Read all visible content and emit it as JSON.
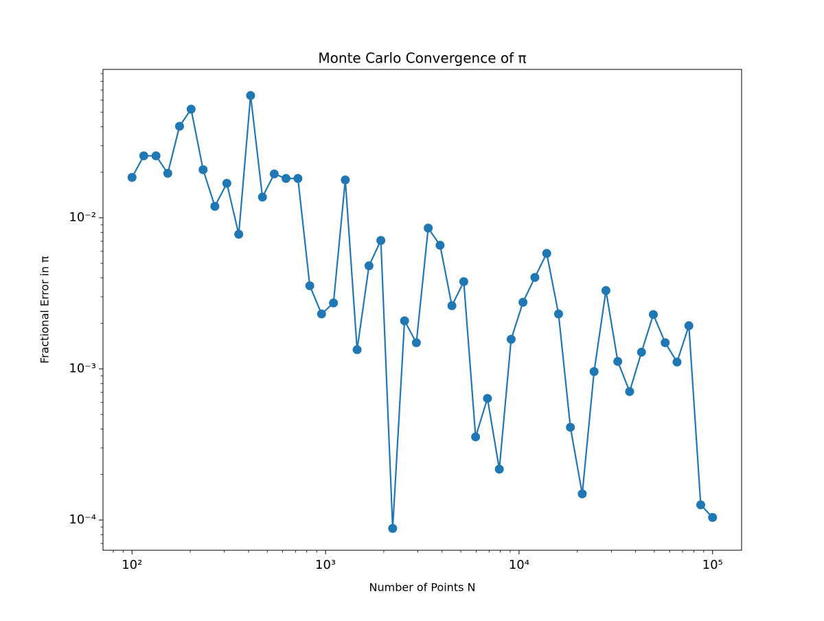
{
  "chart_data": {
    "type": "line",
    "title": "Monte Carlo Convergence of π",
    "x_label": "Number of Points N",
    "y_label": "Fractional Error in π",
    "log_x": true,
    "log_y": true,
    "x": [
      100,
      115,
      133,
      153,
      176,
      202,
      233,
      268,
      309,
      356,
      410,
      472,
      543,
      625,
      720,
      829,
      954,
      1099,
      1265,
      1456,
      1677,
      1931,
      2223,
      2560,
      2947,
      3393,
      3907,
      4498,
      5179,
      5964,
      6866,
      7906,
      9103,
      10481,
      12068,
      13895,
      15999,
      18421,
      21210,
      24421,
      28118,
      32375,
      37276,
      42919,
      49417,
      56899,
      65513,
      75431,
      86851,
      100000
    ],
    "series": [
      {
        "name": "Fractional error",
        "color": "#1f77b4",
        "values": [
          0.0185,
          0.0257,
          0.0257,
          0.0197,
          0.0403,
          0.0523,
          0.0208,
          0.0119,
          0.0169,
          0.00778,
          0.0644,
          0.0137,
          0.0195,
          0.0182,
          0.0182,
          0.00355,
          0.00231,
          0.00273,
          0.0178,
          0.00134,
          0.00481,
          0.00708,
          8.8e-05,
          0.00208,
          0.00149,
          0.00855,
          0.00658,
          0.00262,
          0.00378,
          0.000355,
          0.000638,
          0.000217,
          0.00157,
          0.00276,
          0.00403,
          0.00581,
          0.00231,
          0.000411,
          0.000149,
          0.00096,
          0.0033,
          0.00112,
          0.000708,
          0.00129,
          0.00229,
          0.00149,
          0.00111,
          0.00193,
          0.000126,
          0.000104
        ]
      }
    ],
    "xlim": [
      70.8,
      141254
    ],
    "ylim": [
      6.31e-05,
      0.0959
    ],
    "xticks": [
      {
        "value": 100,
        "label": "10²"
      },
      {
        "value": 1000,
        "label": "10³"
      },
      {
        "value": 10000,
        "label": "10⁴"
      },
      {
        "value": 100000,
        "label": "10⁵"
      }
    ],
    "yticks": [
      {
        "value": 0.0001,
        "label": "10⁻⁴"
      },
      {
        "value": 0.001,
        "label": "10⁻³"
      },
      {
        "value": 0.01,
        "label": "10⁻²"
      }
    ],
    "grid": false
  }
}
